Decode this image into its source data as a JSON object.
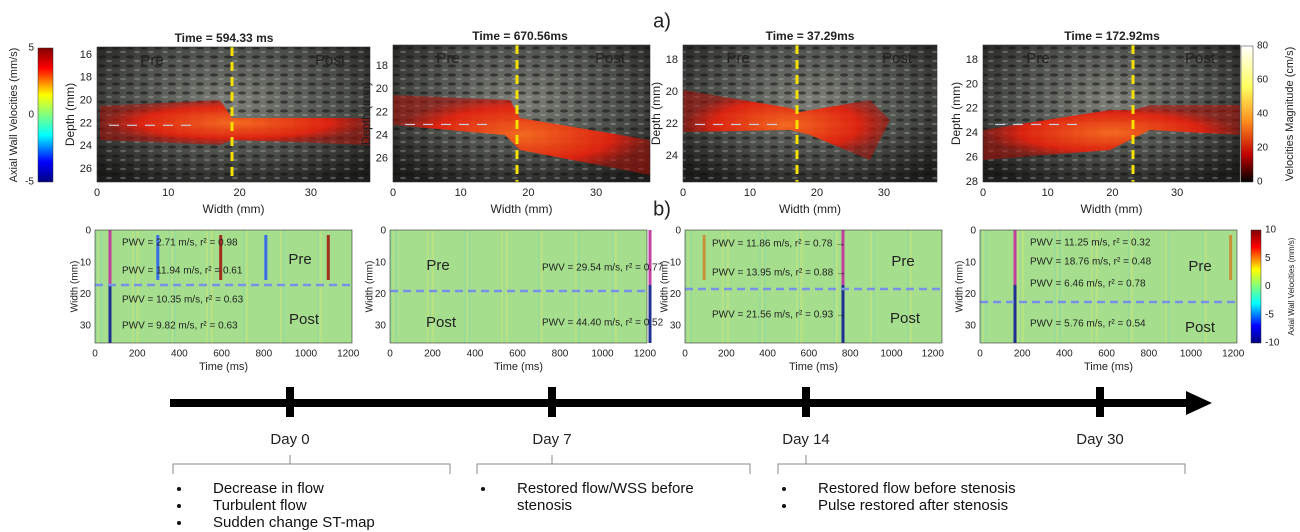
{
  "labels": {
    "a": "a)",
    "b": "b)"
  },
  "top_panels": [
    {
      "title": "Time = 594.33 ms",
      "pre": "Pre",
      "post": "Post",
      "x_label": "Width (mm)",
      "y_label": "Depth (mm)",
      "xticks": [
        0,
        10,
        20,
        30
      ],
      "yticks": [
        16,
        18,
        20,
        22,
        24,
        26
      ]
    },
    {
      "title": "Time = 670.56ms",
      "pre": "Pre",
      "post": "Post",
      "x_label": "Width (mm)",
      "y_label": "Depth (mm)",
      "xticks": [
        0,
        10,
        20,
        30
      ],
      "yticks": [
        18,
        20,
        22,
        24,
        26
      ]
    },
    {
      "title": "Time = 37.29ms",
      "pre": "Pre",
      "post": "Post",
      "x_label": "Width (mm)",
      "y_label": "Depth (mm)",
      "xticks": [
        0,
        10,
        20,
        30
      ],
      "yticks": [
        18,
        20,
        22,
        24
      ]
    },
    {
      "title": "Time = 172.92ms",
      "pre": "Pre",
      "post": "Post",
      "x_label": "Width (mm)",
      "y_label": "Depth (mm)",
      "xticks": [
        0,
        10,
        20,
        30
      ],
      "yticks": [
        18,
        20,
        22,
        24,
        26,
        28
      ]
    }
  ],
  "left_colorbar": {
    "label": "Axial Wall Velocities (mm/s)",
    "ticks": [
      5,
      0,
      -5
    ]
  },
  "right_colorbar": {
    "label": "Velocities Magnitude (cm/s)",
    "ticks": [
      80,
      60,
      40,
      20,
      0
    ]
  },
  "bottom_panels": [
    {
      "pre": "Pre",
      "post": "Post",
      "x_label": "Time (ms)",
      "y_label": "Width (mm)",
      "xticks": [
        0,
        200,
        400,
        600,
        800,
        1000,
        1200
      ],
      "yticks": [
        0,
        10,
        20,
        30
      ],
      "annotations": [
        "PWV = 2.71 m/s, r² = 0.98",
        "PWV = 11.94 m/s, r² = 0.61",
        "PWV = 10.35 m/s, r² = 0.63",
        "PWV = 9.82 m/s, r² = 0.63"
      ]
    },
    {
      "pre": "Pre",
      "post": "Post",
      "x_label": "Time (ms)",
      "y_label": "Width (mm)",
      "xticks": [
        0,
        200,
        400,
        600,
        800,
        1000,
        1200
      ],
      "yticks": [
        0,
        10,
        20,
        30
      ],
      "annotations": [
        "PWV = 29.54 m/s, r² = 0.77",
        "PWV = 44.40 m/s, r² = 0.52"
      ]
    },
    {
      "pre": "Pre",
      "post": "Post",
      "x_label": "Time (ms)",
      "y_label": "Width (mm)",
      "xticks": [
        0,
        200,
        400,
        600,
        800,
        1000,
        1200
      ],
      "yticks": [
        0,
        10,
        20,
        30
      ],
      "annotations": [
        "PWV = 11.86 m/s, r² = 0.78 →",
        "PWV = 13.95 m/s, r² = 0.88 →",
        "PWV = 21.56 m/s, r² = 0.93 →"
      ]
    },
    {
      "pre": "Pre",
      "post": "Post",
      "x_label": "Time (ms)",
      "y_label": "Width (mm)",
      "xticks": [
        0,
        200,
        400,
        600,
        800,
        1000,
        1200
      ],
      "yticks": [
        0,
        10,
        20,
        30
      ],
      "annotations": [
        "PWV = 11.25 m/s, r² = 0.32",
        "PWV = 18.76 m/s, r² = 0.48",
        "PWV = 6.46 m/s, r² = 0.78",
        "PWV = 5.76 m/s, r² = 0.54"
      ]
    }
  ],
  "bottom_colorbar": {
    "label": "Axial Wall Velocities (mm/s)",
    "ticks": [
      10,
      5,
      0,
      -5,
      -10
    ]
  },
  "timeline": {
    "days": [
      "Day 0",
      "Day 7",
      "Day 14",
      "Day 30"
    ],
    "notes": [
      [
        "Decrease in flow",
        "Turbulent flow",
        "Sudden change ST-map"
      ],
      [
        "Restored flow/WSS before stenosis"
      ],
      [
        "Restored flow before stenosis",
        "Pulse restored after stenosis"
      ]
    ]
  }
}
